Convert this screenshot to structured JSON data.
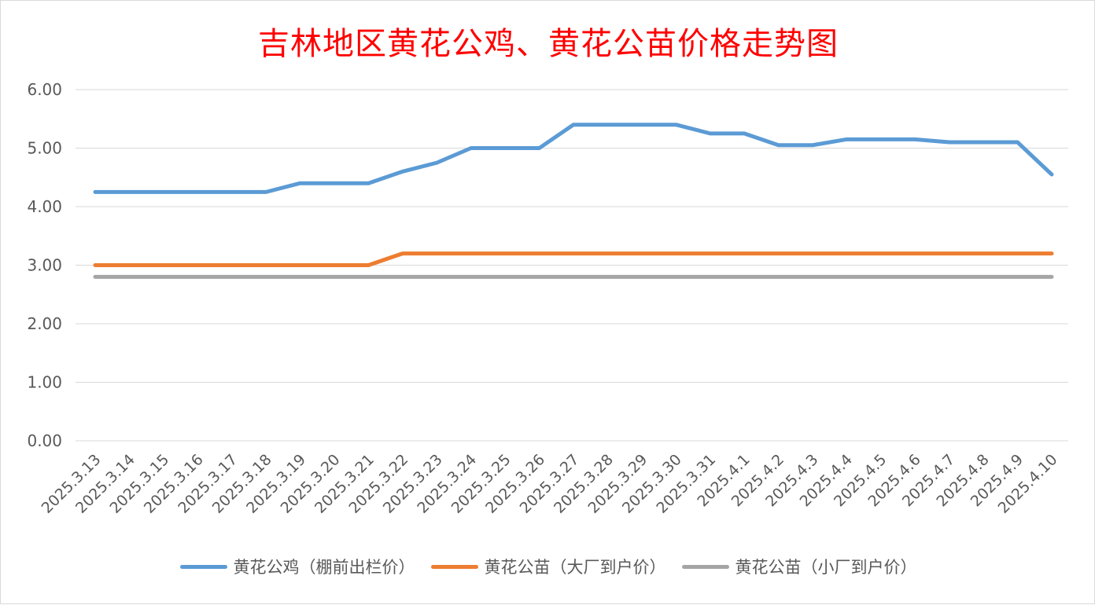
{
  "chart_data": {
    "type": "line",
    "title": "吉林地区黄花公鸡、黄花公苗价格走势图",
    "xlabel": "",
    "ylabel": "",
    "ylim": [
      0,
      6
    ],
    "yticks": [
      "0.00",
      "1.00",
      "2.00",
      "3.00",
      "4.00",
      "5.00",
      "6.00"
    ],
    "grid": true,
    "legend_position": "bottom",
    "categories": [
      "2025.3.13",
      "2025.3.14",
      "2025.3.15",
      "2025.3.16",
      "2025.3.17",
      "2025.3.18",
      "2025.3.19",
      "2025.3.20",
      "2025.3.21",
      "2025.3.22",
      "2025.3.23",
      "2025.3.24",
      "2025.3.25",
      "2025.3.26",
      "2025.3.27",
      "2025.3.28",
      "2025.3.29",
      "2025.3.30",
      "2025.3.31",
      "2025.4.1",
      "2025.4.2",
      "2025.4.3",
      "2025.4.4",
      "2025.4.5",
      "2025.4.6",
      "2025.4.7",
      "2025.4.8",
      "2025.4.9",
      "2025.4.10"
    ],
    "series": [
      {
        "name": "黄花公鸡（棚前出栏价）",
        "color": "#5b9bd5",
        "values": [
          4.25,
          4.25,
          4.25,
          4.25,
          4.25,
          4.25,
          4.4,
          4.4,
          4.4,
          4.6,
          4.75,
          5.0,
          5.0,
          5.0,
          5.4,
          5.4,
          5.4,
          5.4,
          5.25,
          5.25,
          5.05,
          5.05,
          5.15,
          5.15,
          5.15,
          5.1,
          5.1,
          5.1,
          4.55
        ]
      },
      {
        "name": "黄花公苗（大厂到户价）",
        "color": "#ed7d31",
        "values": [
          3.0,
          3.0,
          3.0,
          3.0,
          3.0,
          3.0,
          3.0,
          3.0,
          3.0,
          3.2,
          3.2,
          3.2,
          3.2,
          3.2,
          3.2,
          3.2,
          3.2,
          3.2,
          3.2,
          3.2,
          3.2,
          3.2,
          3.2,
          3.2,
          3.2,
          3.2,
          3.2,
          3.2,
          3.2
        ]
      },
      {
        "name": "黄花公苗（小厂到户价）",
        "color": "#a5a5a5",
        "values": [
          2.8,
          2.8,
          2.8,
          2.8,
          2.8,
          2.8,
          2.8,
          2.8,
          2.8,
          2.8,
          2.8,
          2.8,
          2.8,
          2.8,
          2.8,
          2.8,
          2.8,
          2.8,
          2.8,
          2.8,
          2.8,
          2.8,
          2.8,
          2.8,
          2.8,
          2.8,
          2.8,
          2.8,
          2.8
        ]
      }
    ]
  }
}
